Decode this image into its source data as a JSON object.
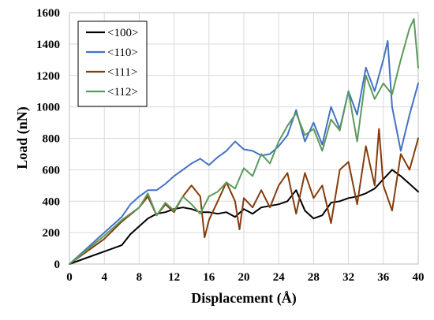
{
  "chart_data": {
    "type": "line",
    "title": "",
    "xlabel": "Displacement (Å)",
    "ylabel": "Load (nN)",
    "xlim": [
      0,
      40
    ],
    "ylim": [
      0,
      1600
    ],
    "xticks": [
      0,
      4,
      8,
      12,
      16,
      20,
      24,
      28,
      32,
      36,
      40
    ],
    "yticks": [
      0,
      200,
      400,
      600,
      800,
      1000,
      1200,
      1400,
      1600
    ],
    "grid": true,
    "legend": "top-left",
    "series": [
      {
        "name": "<100>",
        "color": "#000000",
        "x": [
          0,
          2,
          4,
          5,
          6,
          7,
          8,
          9,
          10,
          11,
          12,
          13,
          14,
          15,
          16,
          17,
          18,
          19,
          20,
          21,
          22,
          23,
          24,
          25,
          26,
          27,
          28,
          29,
          30,
          31,
          32,
          33,
          34,
          35,
          36,
          37,
          38,
          39,
          40
        ],
        "y": [
          0,
          40,
          80,
          100,
          120,
          190,
          240,
          290,
          320,
          330,
          350,
          360,
          350,
          330,
          330,
          320,
          330,
          300,
          350,
          320,
          360,
          370,
          380,
          400,
          470,
          340,
          290,
          310,
          390,
          400,
          420,
          430,
          450,
          480,
          540,
          600,
          560,
          510,
          460
        ]
      },
      {
        "name": "<110>",
        "color": "#4472C4",
        "x": [
          0,
          2,
          4,
          6,
          7,
          8,
          9,
          10,
          11,
          12,
          13,
          14,
          15,
          16,
          17,
          18,
          19,
          20,
          21,
          22,
          23,
          24,
          25,
          26,
          27,
          28,
          29,
          30,
          31,
          32,
          33,
          34,
          35,
          36,
          36.5,
          37,
          38,
          39,
          40
        ],
        "y": [
          0,
          100,
          200,
          300,
          380,
          430,
          470,
          470,
          510,
          560,
          600,
          640,
          670,
          630,
          680,
          720,
          780,
          730,
          720,
          690,
          700,
          750,
          820,
          980,
          780,
          900,
          760,
          1000,
          860,
          1100,
          950,
          1250,
          1100,
          1300,
          1420,
          1000,
          720,
          950,
          1150
        ]
      },
      {
        "name": "<111>",
        "color": "#843C0C",
        "x": [
          0,
          2,
          4,
          6,
          8,
          9,
          10,
          11,
          12,
          13,
          14,
          15,
          15.5,
          16,
          17,
          18,
          19,
          19.5,
          20,
          21,
          22,
          23,
          24,
          25,
          26,
          27,
          28,
          29,
          30,
          31,
          32,
          33,
          34,
          35,
          35.5,
          36,
          37,
          38,
          39,
          40
        ],
        "y": [
          0,
          80,
          160,
          270,
          360,
          430,
          310,
          380,
          330,
          430,
          500,
          430,
          170,
          280,
          400,
          520,
          400,
          220,
          420,
          360,
          470,
          360,
          500,
          580,
          320,
          580,
          420,
          500,
          260,
          600,
          650,
          380,
          750,
          500,
          860,
          500,
          340,
          700,
          600,
          800
        ]
      },
      {
        "name": "<112>",
        "color": "#5B9B5B",
        "x": [
          0,
          2,
          4,
          6,
          8,
          9,
          10,
          11,
          12,
          13,
          14,
          15,
          16,
          17,
          18,
          19,
          20,
          21,
          22,
          23,
          24,
          25,
          26,
          27,
          28,
          29,
          30,
          31,
          32,
          33,
          34,
          35,
          36,
          37,
          38,
          39,
          39.5,
          40
        ],
        "y": [
          0,
          90,
          180,
          280,
          360,
          450,
          310,
          390,
          340,
          430,
          380,
          320,
          430,
          460,
          520,
          480,
          610,
          560,
          700,
          640,
          780,
          880,
          960,
          820,
          860,
          720,
          920,
          850,
          1100,
          780,
          1200,
          1050,
          1150,
          1080,
          1300,
          1500,
          1560,
          1250
        ]
      }
    ]
  }
}
